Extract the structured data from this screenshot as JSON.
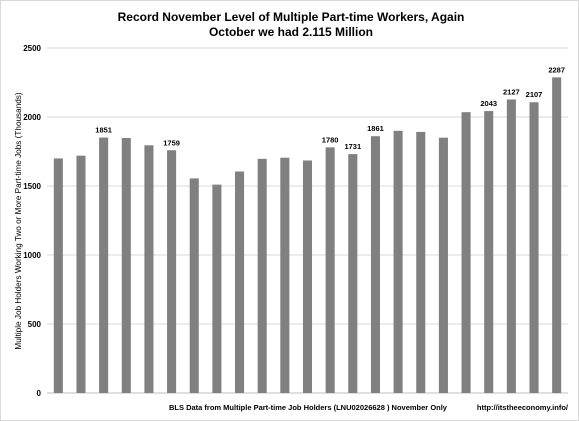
{
  "chart_data": {
    "type": "bar",
    "title_lines": [
      "Record November Level of Multiple Part-time Workers, Again",
      "October we had 2.115 Million"
    ],
    "ylabel": "Multiple Job Holders Working Two or More Part-time Jobs (Thousands)",
    "xlabel": "",
    "ylim": [
      0,
      2500
    ],
    "yticks": [
      0,
      500,
      1000,
      1500,
      2000,
      2500
    ],
    "grid": true,
    "values": [
      1700,
      1720,
      1851,
      1848,
      1795,
      1759,
      1555,
      1510,
      1605,
      1697,
      1705,
      1685,
      1780,
      1731,
      1861,
      1900,
      1892,
      1850,
      2035,
      2043,
      2127,
      2107,
      2287
    ],
    "data_labels": [
      {
        "index": 2,
        "text": "1851"
      },
      {
        "index": 5,
        "text": "1759"
      },
      {
        "index": 12,
        "text": "1780"
      },
      {
        "index": 13,
        "text": "1731"
      },
      {
        "index": 14,
        "text": "1861"
      },
      {
        "index": 19,
        "text": "2043"
      },
      {
        "index": 20,
        "text": "2127"
      },
      {
        "index": 21,
        "text": "2107"
      },
      {
        "index": 22,
        "text": "2287"
      }
    ],
    "bar_color": "#808080",
    "grid_color": "#d9d9d9"
  },
  "footer": {
    "source": "BLS Data from Multiple Part-time Job Holders (LNU02026628 ) November Only",
    "site": "http://itstheeconomy.info/"
  }
}
